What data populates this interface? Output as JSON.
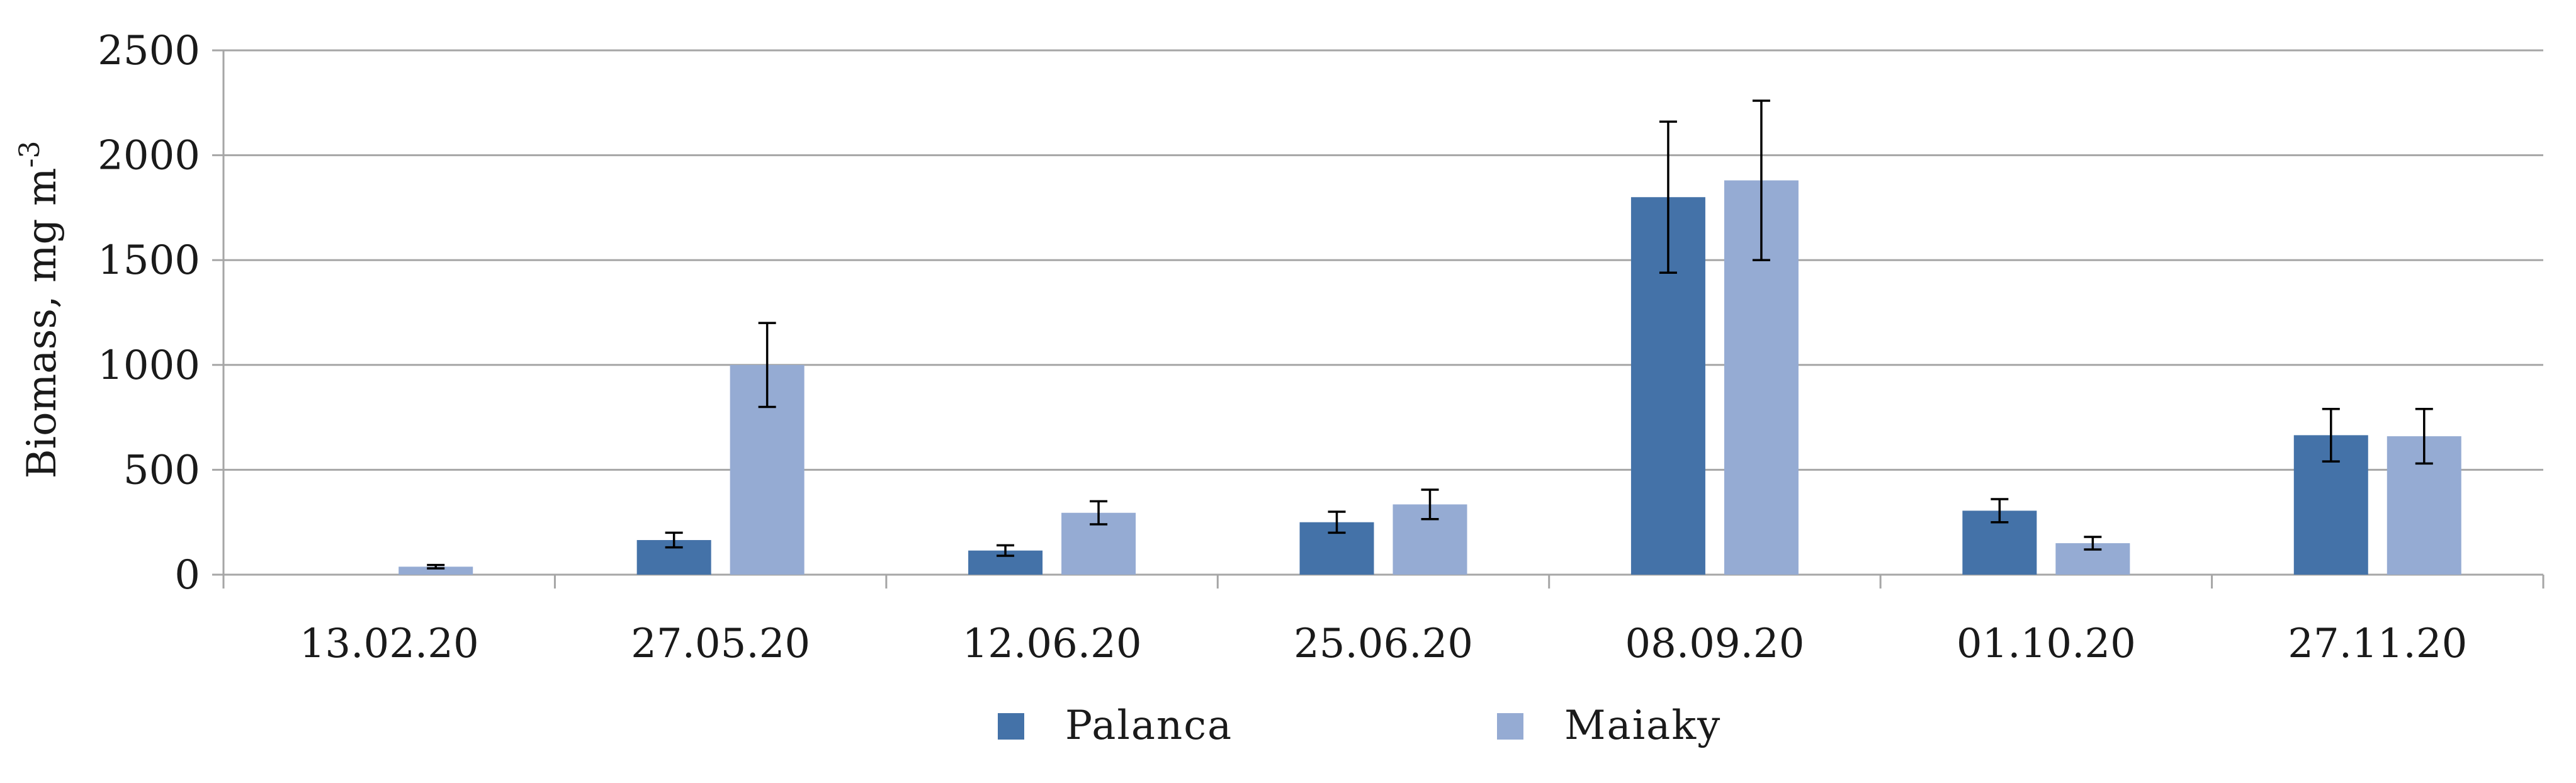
{
  "chart_data": {
    "type": "bar",
    "categories": [
      "13.02.20",
      "27.05.20",
      "12.06.20",
      "25.06.20",
      "08.09.20",
      "01.10.20",
      "27.11.20"
    ],
    "series": [
      {
        "name": "Palanca",
        "color": "#4472a8",
        "values": [
          0,
          165,
          115,
          250,
          1800,
          305,
          665
        ],
        "errors": [
          0,
          35,
          25,
          50,
          360,
          55,
          125
        ]
      },
      {
        "name": "Maiaky",
        "color": "#95abd3",
        "values": [
          38,
          1000,
          295,
          335,
          1880,
          150,
          660
        ],
        "errors": [
          8,
          200,
          55,
          70,
          380,
          30,
          130
        ]
      }
    ],
    "ylim": [
      0,
      2500
    ],
    "yticks": [
      0,
      500,
      1000,
      1500,
      2000,
      2500
    ],
    "ylabel": {
      "text": "Biomass,  mg m",
      "superscript": "-3"
    },
    "xlabel": "",
    "grid": "horizontal",
    "legend_position": "bottom-center"
  }
}
